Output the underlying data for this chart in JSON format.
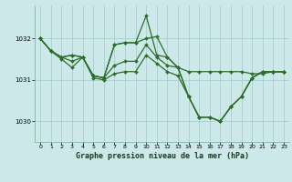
{
  "title": "Graphe pression niveau de la mer (hPa)",
  "bg_color": "#cde8e8",
  "grid_color": "#aacfcf",
  "line_color": "#2d6e2d",
  "ylim": [
    1029.5,
    1032.8
  ],
  "xlim": [
    -0.5,
    23.5
  ],
  "yticks": [
    1030,
    1031,
    1032
  ],
  "xticks": [
    0,
    1,
    2,
    3,
    4,
    5,
    6,
    7,
    8,
    9,
    10,
    11,
    12,
    13,
    14,
    15,
    16,
    17,
    18,
    19,
    20,
    21,
    22,
    23
  ],
  "series": [
    [
      1032.0,
      1031.7,
      1031.55,
      1031.6,
      1031.55,
      1031.1,
      1031.05,
      1031.85,
      1031.9,
      1031.9,
      1032.0,
      1032.05,
      1031.55,
      1031.3,
      1031.2,
      1031.2,
      1031.2,
      1031.2,
      1031.2,
      1031.2,
      1031.15,
      1031.15,
      1031.2,
      1031.2
    ],
    [
      1032.0,
      1031.7,
      1031.55,
      1031.6,
      1031.55,
      1031.1,
      1031.05,
      1031.85,
      1031.9,
      1031.9,
      1032.55,
      1031.6,
      1031.55,
      1031.3,
      1030.6,
      1030.1,
      1030.1,
      1030.0,
      1030.35,
      1030.6,
      1031.05,
      1031.2,
      1031.2,
      1031.2
    ],
    [
      1032.0,
      1031.7,
      1031.55,
      1031.45,
      1031.55,
      1031.1,
      1031.05,
      1031.35,
      1031.45,
      1031.45,
      1031.85,
      1031.55,
      1031.35,
      1031.3,
      1030.6,
      1030.1,
      1030.1,
      1030.0,
      1030.35,
      1030.6,
      1031.05,
      1031.2,
      1031.2,
      1031.2
    ],
    [
      1032.0,
      1031.7,
      1031.5,
      1031.3,
      1031.55,
      1031.05,
      1031.0,
      1031.15,
      1031.2,
      1031.2,
      1031.6,
      1031.4,
      1031.2,
      1031.1,
      1030.6,
      1030.1,
      1030.1,
      1030.0,
      1030.35,
      1030.6,
      1031.05,
      1031.2,
      1031.2,
      1031.2
    ]
  ]
}
